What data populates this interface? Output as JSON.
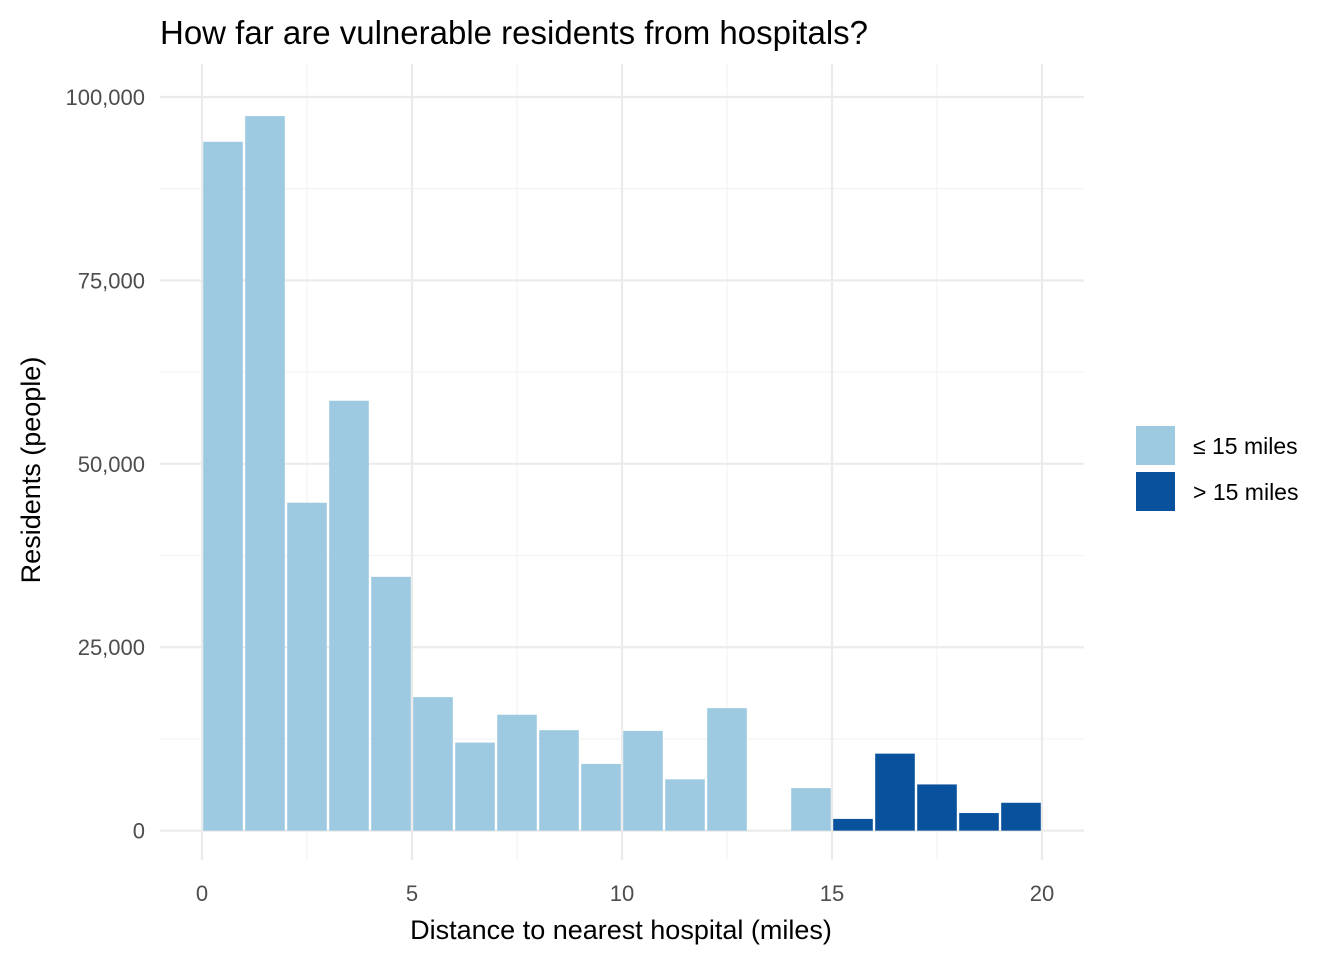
{
  "chart_data": {
    "type": "bar",
    "title": "How far are vulnerable residents from hospitals?",
    "xlabel": "Distance to nearest hospital (miles)",
    "ylabel": "Residents (people)",
    "xlim": [
      -1,
      21
    ],
    "ylim": [
      -4000,
      104500
    ],
    "bin_width": 1,
    "x_ticks": [
      0,
      5,
      10,
      15,
      20
    ],
    "x_tick_labels": [
      "0",
      "5",
      "10",
      "15",
      "20"
    ],
    "y_ticks": [
      0,
      25000,
      50000,
      75000,
      100000
    ],
    "y_tick_labels": [
      "0",
      "25,000",
      "50,000",
      "75,000",
      "100,000"
    ],
    "grid": true,
    "legend_position": "right",
    "series": [
      {
        "name": "≤ 15 miles",
        "color": "#9ecae1",
        "x": [
          0.5,
          1.5,
          2.5,
          3.5,
          4.5,
          5.5,
          6.5,
          7.5,
          8.5,
          9.5,
          10.5,
          11.5,
          12.5,
          14.5
        ],
        "values": [
          93900,
          97400,
          44700,
          58600,
          34600,
          18200,
          12000,
          15800,
          13700,
          9100,
          13600,
          7000,
          16700,
          5800
        ]
      },
      {
        "name": "> 15 miles",
        "color": "#08519c",
        "x": [
          15.5,
          16.5,
          17.5,
          18.5,
          19.5
        ],
        "values": [
          1600,
          10500,
          6300,
          2400,
          3800
        ]
      }
    ]
  }
}
